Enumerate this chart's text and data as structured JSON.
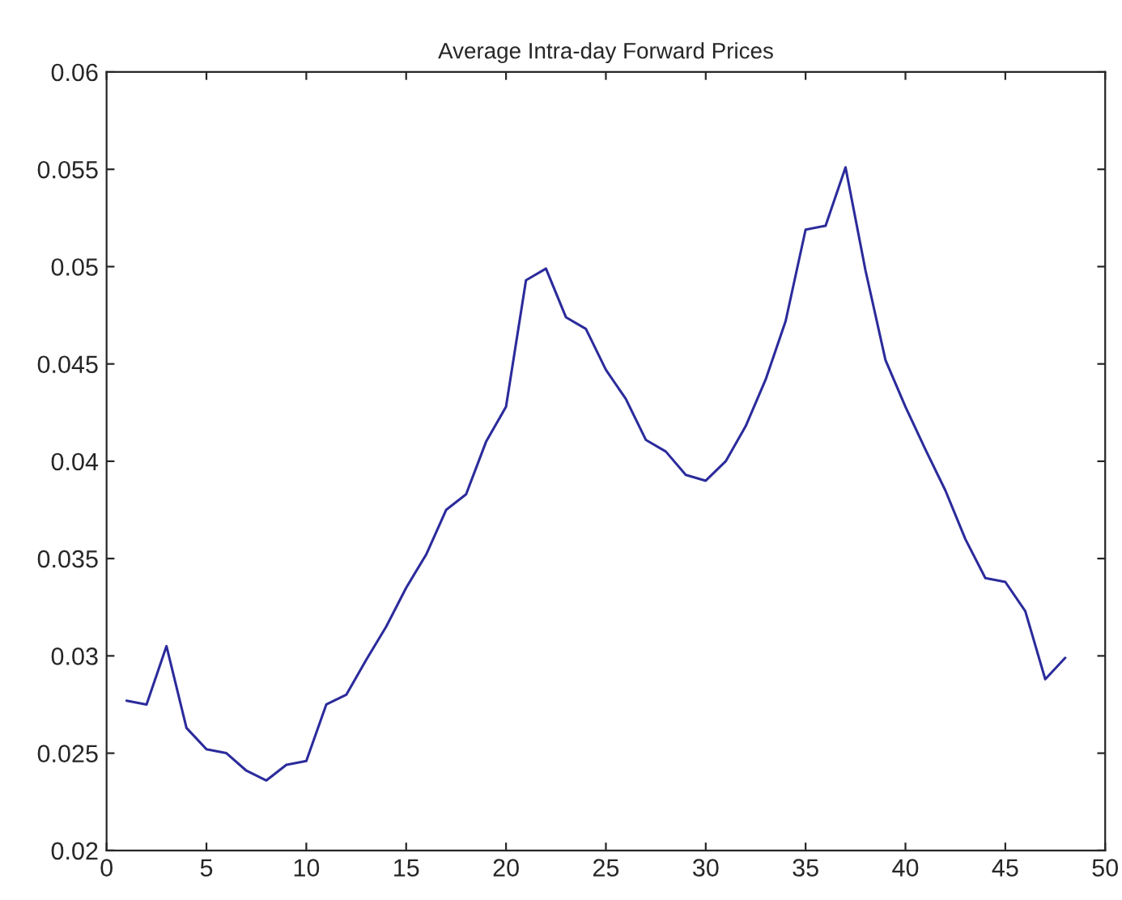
{
  "chart_data": {
    "type": "line",
    "title": "Average Intra-day Forward Prices",
    "x": [
      1,
      2,
      3,
      4,
      5,
      6,
      7,
      8,
      9,
      10,
      11,
      12,
      13,
      14,
      15,
      16,
      17,
      18,
      19,
      20,
      21,
      22,
      23,
      24,
      25,
      26,
      27,
      28,
      29,
      30,
      31,
      32,
      33,
      34,
      35,
      36,
      37,
      38,
      39,
      40,
      41,
      42,
      43,
      44,
      45,
      46,
      47,
      48
    ],
    "series": [
      {
        "color": "#2b2b9c",
        "values": [
          0.0277,
          0.0275,
          0.0305,
          0.0263,
          0.0252,
          0.025,
          0.0241,
          0.0236,
          0.0244,
          0.0246,
          0.0275,
          0.028,
          0.0298,
          0.0315,
          0.0335,
          0.0352,
          0.0375,
          0.0383,
          0.041,
          0.0428,
          0.0493,
          0.0499,
          0.0474,
          0.0468,
          0.0447,
          0.0432,
          0.0411,
          0.0405,
          0.0393,
          0.039,
          0.04,
          0.0418,
          0.0442,
          0.0472,
          0.0519,
          0.0521,
          0.0551,
          0.0498,
          0.0452,
          0.0428,
          0.0406,
          0.0385,
          0.036,
          0.034,
          0.0338,
          0.0323,
          0.0288,
          0.0299
        ]
      }
    ],
    "xlim": [
      0,
      50
    ],
    "xticks": [
      0,
      5,
      10,
      15,
      20,
      25,
      30,
      35,
      40,
      45,
      50
    ],
    "ylim": [
      0.02,
      0.06
    ],
    "yticks": [
      0.02,
      0.025,
      0.03,
      0.035,
      0.04,
      0.045,
      0.05,
      0.055,
      0.06
    ],
    "grid": false,
    "legend": false
  }
}
